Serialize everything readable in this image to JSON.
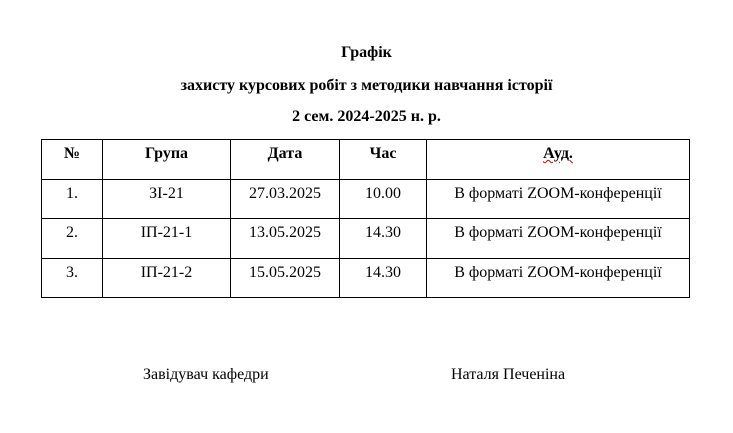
{
  "title": {
    "line1": "Графік",
    "line2": "захисту курсових робіт з методики навчання історії",
    "line3": "2 сем. 2024-2025 н. р."
  },
  "table": {
    "headers": [
      "№",
      "Група",
      "Дата",
      "Час",
      "Ауд."
    ],
    "rows": [
      [
        "1.",
        "ЗІ-21",
        "27.03.2025",
        "10.00",
        "В форматі ZOOM-конференції"
      ],
      [
        "2.",
        "ІП-21-1",
        "13.05.2025",
        "14.30",
        "В форматі ZOOM-конференції"
      ],
      [
        "3.",
        "ІП-21-2",
        "15.05.2025",
        "14.30",
        "В форматі ZOOM-конференції"
      ]
    ]
  },
  "footer": {
    "position": "Завідувач кафедри",
    "name": "Наталя Печеніна"
  }
}
